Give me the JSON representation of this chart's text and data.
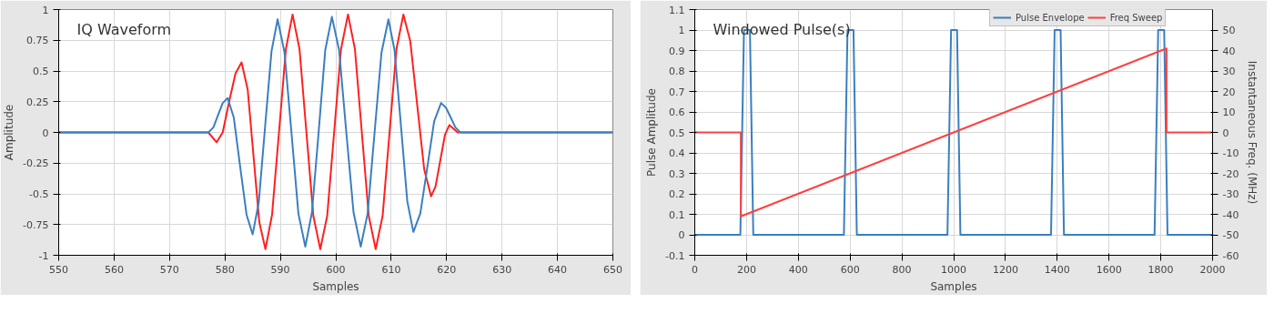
{
  "chart_data": [
    {
      "type": "line",
      "title": "IQ Waveform",
      "xlabel": "Samples",
      "ylabel": "Amplitude",
      "xlim": [
        550,
        650
      ],
      "ylim": [
        -1,
        1
      ],
      "xticks": [
        550,
        560,
        570,
        580,
        590,
        600,
        610,
        620,
        630,
        640,
        650
      ],
      "yticks": [
        -1,
        -0.75,
        -0.5,
        -0.25,
        0,
        0.25,
        0.5,
        0.75,
        1
      ],
      "grid": true,
      "legend": false,
      "series": [
        {
          "color": "#ff2020",
          "x": [
            550,
            577,
            578.5,
            579.6,
            580.75,
            581.9,
            583,
            584.1,
            585.15,
            586.2,
            587.3,
            588.5,
            589.75,
            591,
            592.2,
            593.45,
            594.7,
            595.95,
            597.2,
            598.45,
            599.7,
            600.95,
            602.2,
            603.45,
            604.7,
            605.95,
            607.2,
            608.45,
            609.7,
            610.95,
            612.2,
            613.45,
            614.7,
            615.95,
            617.2,
            618,
            618.85,
            619.7,
            620.5,
            622,
            650
          ],
          "values": [
            0,
            0,
            -0.08,
            0,
            0.25,
            0.48,
            0.57,
            0.35,
            -0.19,
            -0.73,
            -0.95,
            -0.67,
            0,
            0.68,
            0.96,
            0.68,
            0,
            -0.68,
            -0.95,
            -0.68,
            0,
            0.68,
            0.96,
            0.68,
            0,
            -0.68,
            -0.95,
            -0.68,
            0,
            0.68,
            0.96,
            0.74,
            0.22,
            -0.3,
            -0.52,
            -0.44,
            -0.23,
            -0.02,
            0.06,
            0,
            0
          ]
        },
        {
          "color": "#3a7fc0",
          "x": [
            550,
            577,
            577.9,
            578.75,
            579.6,
            580.5,
            581.6,
            582.75,
            583.9,
            585,
            586.1,
            587.25,
            588.4,
            589.5,
            590.75,
            592,
            593.25,
            594.5,
            595.7,
            596.9,
            598.1,
            599.3,
            600.6,
            601.9,
            603.2,
            604.5,
            605.75,
            607,
            608.25,
            609.5,
            610.6,
            611.75,
            612.9,
            614,
            615.25,
            616.5,
            617.75,
            619,
            619.9,
            620.75,
            621.6,
            622.5,
            650
          ],
          "values": [
            0,
            0,
            0.04,
            0.14,
            0.24,
            0.28,
            0.12,
            -0.28,
            -0.67,
            -0.83,
            -0.57,
            0.05,
            0.66,
            0.92,
            0.65,
            0,
            -0.66,
            -0.93,
            -0.65,
            0,
            0.67,
            0.94,
            0.67,
            0,
            -0.65,
            -0.93,
            -0.66,
            0,
            0.65,
            0.92,
            0.67,
            0.06,
            -0.56,
            -0.81,
            -0.66,
            -0.29,
            0.09,
            0.24,
            0.2,
            0.12,
            0.04,
            0,
            0
          ]
        }
      ]
    },
    {
      "type": "line",
      "title": "Windowed Pulse(s)",
      "xlabel": "Samples",
      "ylabel": "Pulse Amplitude",
      "y2label": "Instantaneous Freq. (MHz)",
      "xlim": [
        0,
        2000
      ],
      "ylim": [
        -0.1,
        1.1
      ],
      "y2lim": [
        -60,
        60
      ],
      "xticks": [
        0,
        200,
        400,
        600,
        800,
        1000,
        1200,
        1400,
        1600,
        1800,
        2000
      ],
      "yticks": [
        -0.1,
        0,
        0.1,
        0.2,
        0.3,
        0.4,
        0.5,
        0.6,
        0.7,
        0.8,
        0.9,
        1,
        1.1
      ],
      "y2ticks": [
        -60,
        -50,
        -40,
        -30,
        -20,
        -10,
        0,
        10,
        20,
        30,
        40,
        50
      ],
      "grid": true,
      "legend": "top right",
      "series": [
        {
          "name": "Pulse Envelope",
          "color": "#3a7fc0",
          "x": [
            0,
            176,
            190,
            213,
            226,
            576,
            590,
            613,
            626,
            976,
            990,
            1013,
            1026,
            1376,
            1390,
            1413,
            1426,
            1776,
            1790,
            1813,
            1826,
            2000
          ],
          "values": [
            0,
            0,
            1,
            1,
            0,
            0,
            1,
            1,
            0,
            0,
            1,
            1,
            0,
            0,
            1,
            1,
            0,
            0,
            1,
            1,
            0,
            0
          ]
        },
        {
          "name": "Freq Sweep",
          "color": "#ff4040",
          "axis": "y2",
          "x": [
            0,
            178,
            178,
            1822,
            1822,
            2000
          ],
          "values": [
            0,
            0,
            -41,
            41,
            0,
            0
          ]
        }
      ]
    }
  ]
}
